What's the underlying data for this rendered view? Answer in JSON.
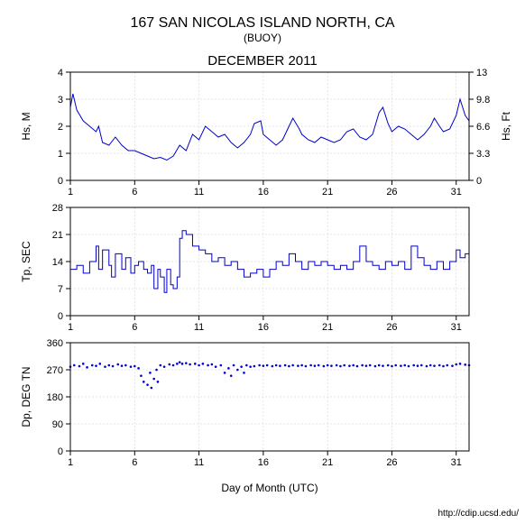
{
  "title": "167 SAN NICOLAS ISLAND NORTH, CA",
  "subtitle": "(BUOY)",
  "period_title": "DECEMBER 2011",
  "xlabel": "Day of Month (UTC)",
  "credit": "http://cdip.ucsd.edu/",
  "background_color": "#ffffff",
  "grid_color": "#cccccc",
  "line_color": "#0000cc",
  "x_ticks": [
    1,
    6,
    11,
    16,
    21,
    26,
    31
  ],
  "x_range": [
    1,
    32
  ],
  "panel_hs": {
    "ylabel_left": "Hs, M",
    "ylabel_right": "Hs, Ft",
    "yticks_left": [
      0,
      1,
      2,
      3,
      4
    ],
    "yticks_right": [
      0,
      3.3,
      6.6,
      9.8,
      13
    ],
    "ylim": [
      0,
      4
    ],
    "data": [
      [
        1,
        2.7
      ],
      [
        1.2,
        3.2
      ],
      [
        1.5,
        2.6
      ],
      [
        2,
        2.2
      ],
      [
        2.5,
        2.0
      ],
      [
        3,
        1.8
      ],
      [
        3.2,
        2.0
      ],
      [
        3.5,
        1.4
      ],
      [
        4,
        1.3
      ],
      [
        4.5,
        1.6
      ],
      [
        5,
        1.3
      ],
      [
        5.5,
        1.1
      ],
      [
        6,
        1.1
      ],
      [
        6.5,
        1.0
      ],
      [
        7,
        0.9
      ],
      [
        7.5,
        0.8
      ],
      [
        8,
        0.85
      ],
      [
        8.5,
        0.75
      ],
      [
        9,
        0.9
      ],
      [
        9.5,
        1.3
      ],
      [
        10,
        1.1
      ],
      [
        10.5,
        1.7
      ],
      [
        11,
        1.5
      ],
      [
        11.5,
        2.0
      ],
      [
        12,
        1.8
      ],
      [
        12.5,
        1.6
      ],
      [
        13,
        1.7
      ],
      [
        13.5,
        1.4
      ],
      [
        14,
        1.2
      ],
      [
        14.5,
        1.4
      ],
      [
        15,
        1.7
      ],
      [
        15.3,
        2.1
      ],
      [
        15.8,
        2.2
      ],
      [
        16,
        1.7
      ],
      [
        16.5,
        1.5
      ],
      [
        17,
        1.3
      ],
      [
        17.5,
        1.5
      ],
      [
        18,
        2.0
      ],
      [
        18.3,
        2.3
      ],
      [
        18.8,
        1.9
      ],
      [
        19,
        1.7
      ],
      [
        19.5,
        1.5
      ],
      [
        20,
        1.4
      ],
      [
        20.5,
        1.6
      ],
      [
        21,
        1.5
      ],
      [
        21.5,
        1.4
      ],
      [
        22,
        1.5
      ],
      [
        22.5,
        1.8
      ],
      [
        23,
        1.9
      ],
      [
        23.5,
        1.6
      ],
      [
        24,
        1.5
      ],
      [
        24.5,
        1.7
      ],
      [
        25,
        2.5
      ],
      [
        25.3,
        2.7
      ],
      [
        25.7,
        2.1
      ],
      [
        26,
        1.8
      ],
      [
        26.5,
        2.0
      ],
      [
        27,
        1.9
      ],
      [
        27.5,
        1.7
      ],
      [
        28,
        1.5
      ],
      [
        28.5,
        1.7
      ],
      [
        29,
        2.0
      ],
      [
        29.3,
        2.3
      ],
      [
        29.7,
        2.0
      ],
      [
        30,
        1.8
      ],
      [
        30.5,
        1.9
      ],
      [
        31,
        2.4
      ],
      [
        31.3,
        3.0
      ],
      [
        31.7,
        2.4
      ],
      [
        32,
        2.2
      ]
    ]
  },
  "panel_tp": {
    "ylabel": "Tp, SEC",
    "yticks": [
      0,
      7,
      14,
      21,
      28
    ],
    "ylim": [
      0,
      28
    ],
    "data": [
      [
        1,
        12
      ],
      [
        1.5,
        13
      ],
      [
        2,
        11
      ],
      [
        2.5,
        14
      ],
      [
        3,
        18
      ],
      [
        3.2,
        12
      ],
      [
        3.5,
        17
      ],
      [
        4,
        13
      ],
      [
        4.2,
        10
      ],
      [
        4.5,
        16
      ],
      [
        5,
        12
      ],
      [
        5.3,
        15
      ],
      [
        5.7,
        11
      ],
      [
        6,
        13
      ],
      [
        6.3,
        14
      ],
      [
        6.7,
        12
      ],
      [
        7,
        11
      ],
      [
        7.3,
        13
      ],
      [
        7.5,
        7
      ],
      [
        7.8,
        12
      ],
      [
        8,
        10
      ],
      [
        8.3,
        6
      ],
      [
        8.5,
        12
      ],
      [
        8.8,
        8
      ],
      [
        9,
        7
      ],
      [
        9.3,
        10
      ],
      [
        9.5,
        20
      ],
      [
        9.7,
        22
      ],
      [
        10,
        21
      ],
      [
        10.5,
        18
      ],
      [
        11,
        17
      ],
      [
        11.5,
        16
      ],
      [
        12,
        14
      ],
      [
        12.5,
        15
      ],
      [
        13,
        13
      ],
      [
        13.5,
        14
      ],
      [
        14,
        12
      ],
      [
        14.5,
        10
      ],
      [
        15,
        11
      ],
      [
        15.5,
        12
      ],
      [
        16,
        10
      ],
      [
        16.5,
        12
      ],
      [
        17,
        14
      ],
      [
        17.5,
        13
      ],
      [
        18,
        16
      ],
      [
        18.5,
        14
      ],
      [
        19,
        12
      ],
      [
        19.5,
        14
      ],
      [
        20,
        13
      ],
      [
        20.5,
        14
      ],
      [
        21,
        13
      ],
      [
        21.5,
        12
      ],
      [
        22,
        13
      ],
      [
        22.5,
        12
      ],
      [
        23,
        14
      ],
      [
        23.5,
        18
      ],
      [
        24,
        14
      ],
      [
        24.5,
        13
      ],
      [
        25,
        12
      ],
      [
        25.5,
        14
      ],
      [
        26,
        13
      ],
      [
        26.5,
        14
      ],
      [
        27,
        12
      ],
      [
        27.5,
        18
      ],
      [
        28,
        15
      ],
      [
        28.5,
        13
      ],
      [
        29,
        12
      ],
      [
        29.5,
        14
      ],
      [
        30,
        12
      ],
      [
        30.5,
        14
      ],
      [
        31,
        17
      ],
      [
        31.3,
        15
      ],
      [
        31.7,
        16
      ],
      [
        32,
        14
      ]
    ]
  },
  "panel_dp": {
    "ylabel": "Dp, DEG TN",
    "yticks": [
      0,
      90,
      180,
      270,
      360
    ],
    "ylim": [
      0,
      360
    ],
    "data": [
      [
        1,
        280
      ],
      [
        1.3,
        285
      ],
      [
        1.7,
        282
      ],
      [
        2,
        290
      ],
      [
        2.3,
        278
      ],
      [
        2.7,
        285
      ],
      [
        3,
        283
      ],
      [
        3.3,
        290
      ],
      [
        3.7,
        280
      ],
      [
        4,
        285
      ],
      [
        4.3,
        282
      ],
      [
        4.7,
        288
      ],
      [
        5,
        283
      ],
      [
        5.3,
        285
      ],
      [
        5.7,
        280
      ],
      [
        6,
        282
      ],
      [
        6.3,
        275
      ],
      [
        6.5,
        250
      ],
      [
        6.7,
        230
      ],
      [
        7,
        220
      ],
      [
        7.2,
        260
      ],
      [
        7.3,
        210
      ],
      [
        7.5,
        240
      ],
      [
        7.7,
        270
      ],
      [
        7.8,
        230
      ],
      [
        8,
        285
      ],
      [
        8.3,
        280
      ],
      [
        8.7,
        288
      ],
      [
        9,
        285
      ],
      [
        9.3,
        290
      ],
      [
        9.5,
        295
      ],
      [
        9.7,
        290
      ],
      [
        10,
        292
      ],
      [
        10.3,
        288
      ],
      [
        10.7,
        290
      ],
      [
        11,
        285
      ],
      [
        11.3,
        290
      ],
      [
        11.7,
        285
      ],
      [
        12,
        288
      ],
      [
        12.3,
        280
      ],
      [
        12.7,
        285
      ],
      [
        13,
        260
      ],
      [
        13.3,
        275
      ],
      [
        13.5,
        250
      ],
      [
        13.7,
        285
      ],
      [
        14,
        270
      ],
      [
        14.3,
        280
      ],
      [
        14.5,
        260
      ],
      [
        14.7,
        285
      ],
      [
        15,
        280
      ],
      [
        15.3,
        282
      ],
      [
        15.7,
        285
      ],
      [
        16,
        283
      ],
      [
        16.3,
        285
      ],
      [
        16.7,
        282
      ],
      [
        17,
        285
      ],
      [
        17.3,
        283
      ],
      [
        17.7,
        285
      ],
      [
        18,
        282
      ],
      [
        18.3,
        285
      ],
      [
        18.7,
        283
      ],
      [
        19,
        285
      ],
      [
        19.3,
        282
      ],
      [
        19.7,
        285
      ],
      [
        20,
        283
      ],
      [
        20.3,
        285
      ],
      [
        20.7,
        282
      ],
      [
        21,
        285
      ],
      [
        21.3,
        283
      ],
      [
        21.7,
        285
      ],
      [
        22,
        282
      ],
      [
        22.3,
        285
      ],
      [
        22.7,
        283
      ],
      [
        23,
        285
      ],
      [
        23.3,
        282
      ],
      [
        23.7,
        285
      ],
      [
        24,
        283
      ],
      [
        24.3,
        285
      ],
      [
        24.7,
        282
      ],
      [
        25,
        285
      ],
      [
        25.3,
        283
      ],
      [
        25.7,
        285
      ],
      [
        26,
        282
      ],
      [
        26.3,
        285
      ],
      [
        26.7,
        283
      ],
      [
        27,
        285
      ],
      [
        27.3,
        282
      ],
      [
        27.7,
        285
      ],
      [
        28,
        283
      ],
      [
        28.3,
        285
      ],
      [
        28.7,
        282
      ],
      [
        29,
        285
      ],
      [
        29.3,
        283
      ],
      [
        29.7,
        285
      ],
      [
        30,
        282
      ],
      [
        30.3,
        285
      ],
      [
        30.7,
        283
      ],
      [
        31,
        288
      ],
      [
        31.3,
        290
      ],
      [
        31.7,
        287
      ],
      [
        32,
        285
      ]
    ]
  }
}
